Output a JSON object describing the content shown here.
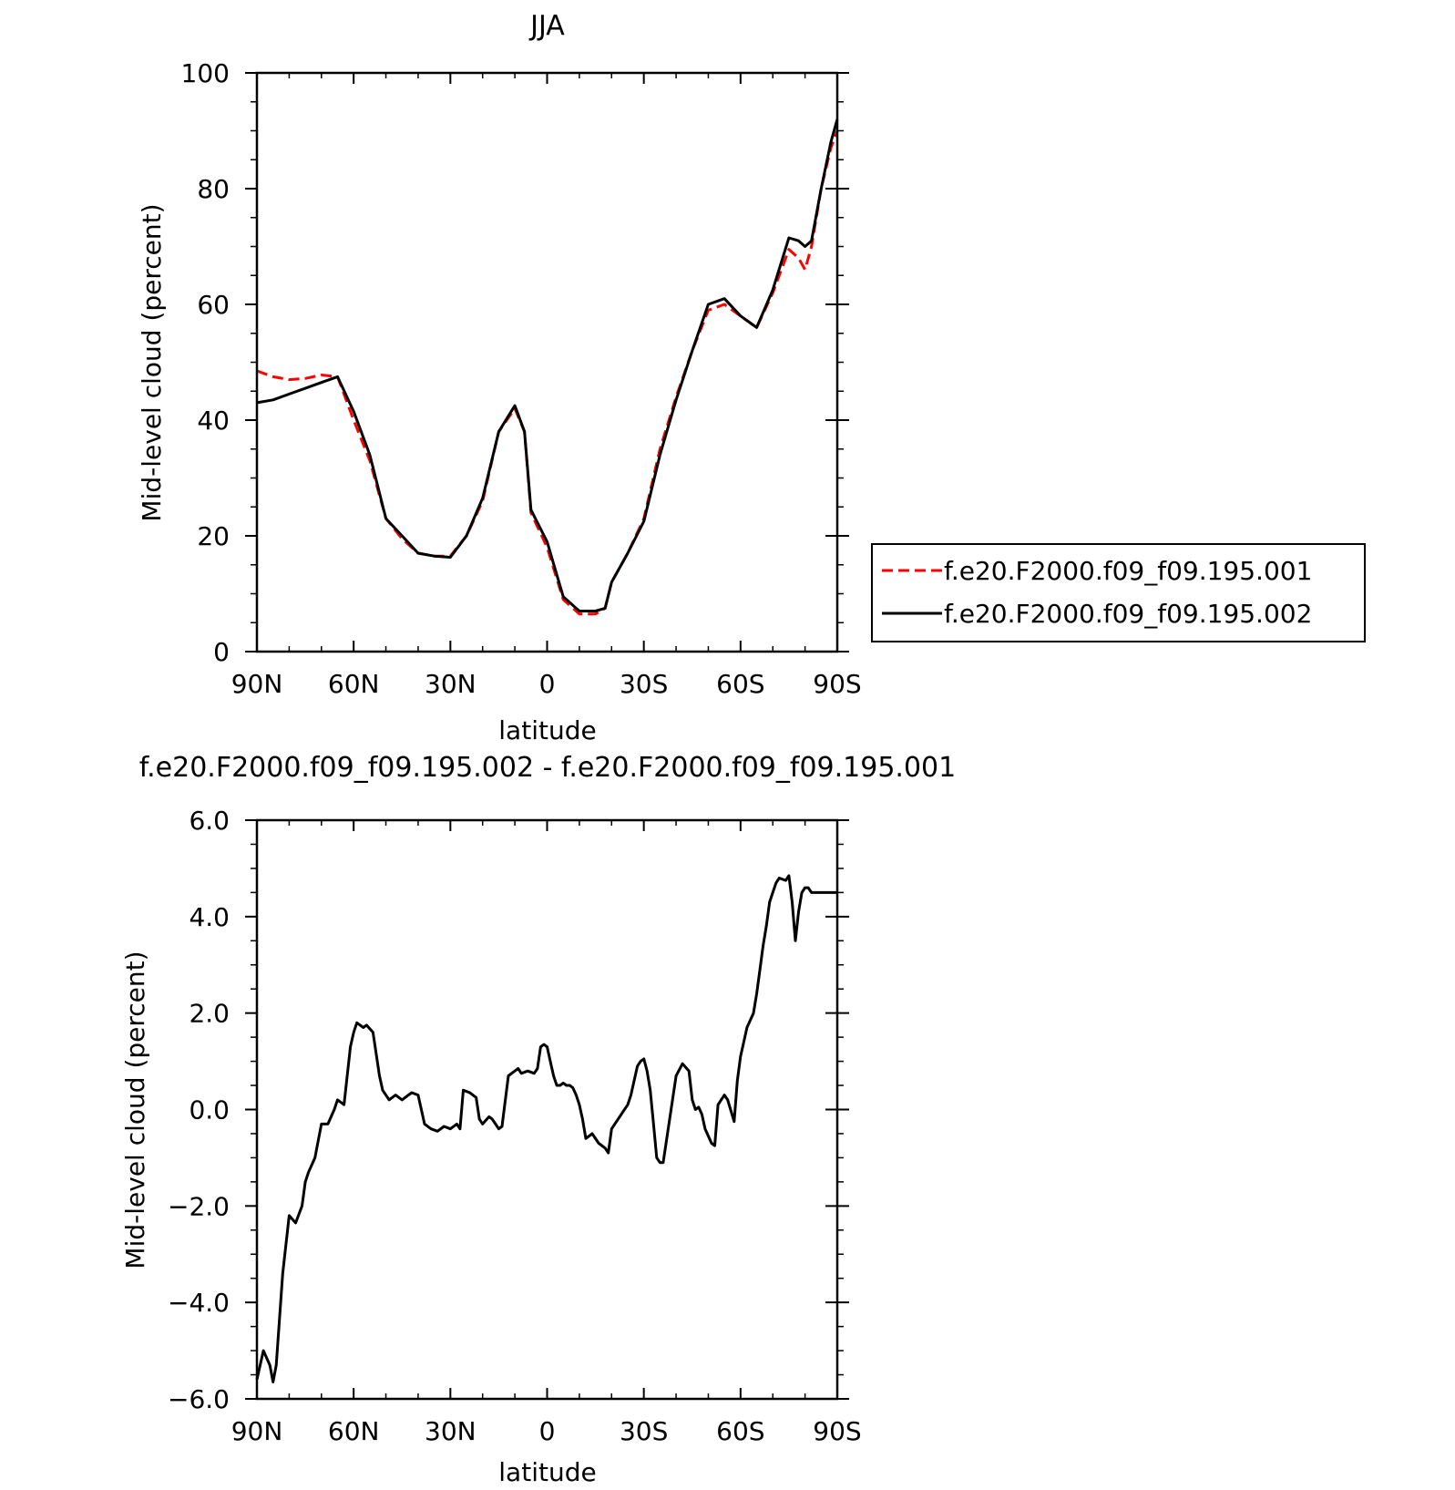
{
  "chart_data": [
    {
      "type": "line",
      "title": "JJA",
      "xlabel": "latitude",
      "ylabel": "Mid-level cloud (percent)",
      "xlim": [
        90,
        -90
      ],
      "ylim": [
        0,
        100
      ],
      "x_ticks": [
        90,
        60,
        30,
        0,
        -30,
        -60,
        -90
      ],
      "x_tick_labels": [
        "90N",
        "60N",
        "30N",
        "0",
        "30S",
        "60S",
        "90S"
      ],
      "y_ticks": [
        0,
        20,
        40,
        60,
        80,
        100
      ],
      "y_tick_labels": [
        "0",
        "20",
        "40",
        "60",
        "80",
        "100"
      ],
      "legend_position": "right",
      "x": [
        90,
        85,
        80,
        75,
        70,
        65,
        60,
        55,
        50,
        45,
        40,
        35,
        30,
        25,
        20,
        15,
        10,
        7,
        5,
        0,
        -5,
        -10,
        -15,
        -18,
        -20,
        -25,
        -30,
        -35,
        -40,
        -45,
        -50,
        -55,
        -60,
        -65,
        -70,
        -75,
        -78,
        -80,
        -82,
        -85,
        -88,
        -90
      ],
      "series": [
        {
          "name": "f.e20.F2000.f09_f09.195.001",
          "color": "#ff0000",
          "dash": "dashed",
          "values": [
            48.5,
            47.5,
            47.0,
            47.2,
            47.8,
            47.5,
            40.0,
            33.0,
            23.0,
            19.5,
            17.0,
            16.5,
            16.5,
            20.0,
            26.0,
            38.0,
            42.0,
            38.0,
            24.0,
            18.0,
            9.0,
            6.5,
            6.5,
            7.5,
            12.0,
            17.0,
            23.0,
            35.0,
            44.0,
            52.0,
            59.0,
            60.0,
            58.0,
            56.0,
            62.0,
            69.5,
            68.0,
            66.0,
            70.0,
            80.0,
            87.0,
            90.0
          ]
        },
        {
          "name": "f.e20.F2000.f09_f09.195.002",
          "color": "#000000",
          "dash": "solid",
          "values": [
            43.0,
            43.5,
            44.5,
            45.5,
            46.5,
            47.5,
            41.5,
            34.0,
            23.0,
            20.0,
            17.0,
            16.5,
            16.3,
            20.0,
            26.5,
            38.0,
            42.5,
            38.0,
            24.5,
            19.0,
            9.5,
            7.0,
            7.0,
            7.5,
            12.0,
            17.0,
            22.5,
            34.0,
            43.5,
            52.0,
            60.0,
            61.0,
            58.0,
            56.0,
            62.5,
            71.5,
            71.0,
            70.0,
            71.0,
            80.0,
            88.0,
            92.0
          ]
        }
      ]
    },
    {
      "type": "line",
      "title": "f.e20.F2000.f09_f09.195.002 - f.e20.F2000.f09_f09.195.001",
      "xlabel": "latitude",
      "ylabel": "Mid-level cloud (percent)",
      "xlim": [
        90,
        -90
      ],
      "ylim": [
        -6,
        6
      ],
      "x_ticks": [
        90,
        60,
        30,
        0,
        -30,
        -60,
        -90
      ],
      "x_tick_labels": [
        "90N",
        "60N",
        "30N",
        "0",
        "30S",
        "60S",
        "90S"
      ],
      "y_ticks": [
        -6,
        -4,
        -2,
        0,
        2,
        4,
        6
      ],
      "y_tick_labels": [
        "−6.0",
        "−4.0",
        "−2.0",
        "0.0",
        "2.0",
        "4.0",
        "6.0"
      ],
      "x": [
        90,
        88,
        86,
        85,
        84,
        82,
        80,
        78,
        76,
        75,
        74,
        72,
        70,
        68,
        66,
        65,
        63,
        61,
        60,
        59,
        57,
        56,
        54,
        52,
        51,
        49,
        47,
        45,
        43,
        42,
        40,
        38,
        36,
        34,
        32,
        30,
        28,
        27,
        26,
        24,
        22,
        21,
        20,
        18,
        17,
        16,
        15,
        14,
        12,
        10,
        9,
        8,
        6,
        4,
        3,
        2,
        1,
        0,
        -1,
        -2,
        -3,
        -4,
        -5,
        -6,
        -7,
        -8,
        -9,
        -10,
        -11,
        -12,
        -14,
        -16,
        -18,
        -19,
        -20,
        -22,
        -23,
        -25,
        -26,
        -28,
        -29,
        -30,
        -31,
        -32,
        -33,
        -34,
        -35,
        -36,
        -38,
        -40,
        -42,
        -44,
        -45,
        -46,
        -47,
        -48,
        -49,
        -51,
        -52,
        -53,
        -55,
        -56,
        -58,
        -59,
        -60,
        -62,
        -64,
        -65,
        -66,
        -67,
        -68,
        -69,
        -70,
        -71,
        -72,
        -74,
        -75,
        -76,
        -77,
        -78,
        -79,
        -80,
        -81,
        -82,
        -83,
        -84,
        -85,
        -86,
        -87,
        -88,
        -89,
        -90
      ],
      "series": [
        {
          "name": "",
          "color": "#000000",
          "dash": "solid",
          "values": [
            -5.6,
            -5.0,
            -5.3,
            -5.65,
            -5.3,
            -3.4,
            -2.2,
            -2.35,
            -2.0,
            -1.5,
            -1.3,
            -1.0,
            -0.3,
            -0.3,
            0.0,
            0.2,
            0.1,
            1.3,
            1.6,
            1.8,
            1.7,
            1.75,
            1.6,
            0.7,
            0.4,
            0.2,
            0.3,
            0.2,
            0.3,
            0.35,
            0.3,
            -0.3,
            -0.4,
            -0.45,
            -0.35,
            -0.4,
            -0.3,
            -0.4,
            0.4,
            0.35,
            0.25,
            -0.2,
            -0.3,
            -0.15,
            -0.2,
            -0.3,
            -0.4,
            -0.35,
            0.7,
            0.8,
            0.85,
            0.75,
            0.8,
            0.75,
            0.85,
            1.3,
            1.35,
            1.3,
            1.0,
            0.7,
            0.5,
            0.5,
            0.55,
            0.5,
            0.5,
            0.45,
            0.3,
            0.1,
            -0.2,
            -0.6,
            -0.5,
            -0.7,
            -0.8,
            -0.9,
            -0.4,
            -0.2,
            -0.1,
            0.1,
            0.3,
            0.9,
            1.0,
            1.05,
            0.8,
            0.4,
            -0.3,
            -1.0,
            -1.1,
            -1.1,
            -0.2,
            0.7,
            0.95,
            0.8,
            0.2,
            0.0,
            0.05,
            -0.1,
            -0.4,
            -0.7,
            -0.75,
            0.1,
            0.3,
            0.2,
            -0.25,
            0.6,
            1.1,
            1.7,
            2.0,
            2.4,
            2.9,
            3.4,
            3.8,
            4.3,
            4.5,
            4.7,
            4.8,
            4.75,
            4.85,
            4.3,
            3.5,
            4.1,
            4.5,
            4.6,
            4.6,
            4.5,
            4.5,
            4.5,
            4.5,
            4.5,
            4.5,
            4.5,
            4.5,
            4.5
          ]
        }
      ]
    }
  ]
}
